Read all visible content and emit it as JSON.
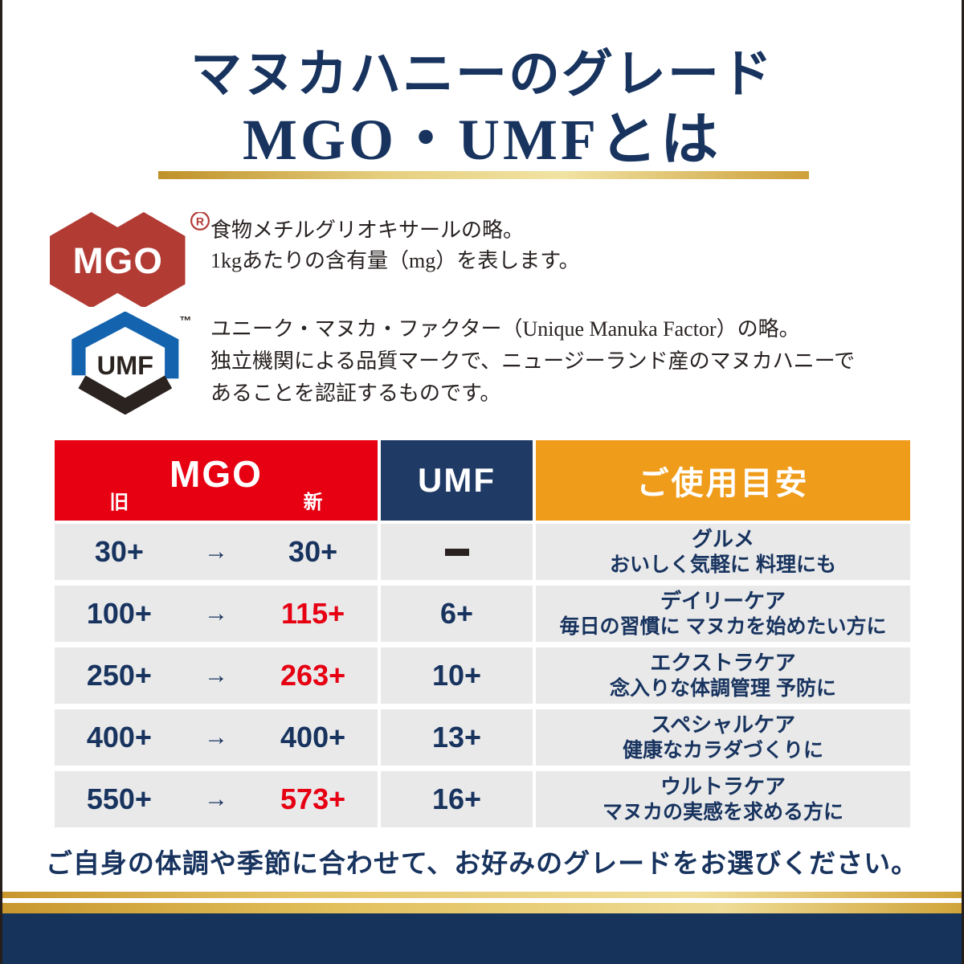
{
  "page": {
    "title_line1": "マヌカハニーのグレード",
    "title_line2": "MGO・UMFとは",
    "closing": "ご自身の体調や季節に合わせて、お好みのグレードをお選びください。"
  },
  "legend": {
    "mgo": {
      "logo_text": "MGO",
      "registered_mark": "®",
      "desc_lines": [
        "食物メチルグリオキサールの略。",
        "1kgあたりの含有量（mg）を表します。"
      ]
    },
    "umf": {
      "logo_text": "UMF",
      "trademark": "™",
      "desc_lines": [
        "ユニーク・マヌカ・ファクター（Unique Manuka Factor）の略。",
        "独立機関による品質マークで、ニュージーランド産のマヌカハニーで",
        "あることを認証するものです。"
      ]
    }
  },
  "table": {
    "headers": {
      "mgo": "MGO",
      "mgo_old": "旧",
      "mgo_new": "新",
      "umf": "UMF",
      "usage": "ご使用目安"
    },
    "rows": [
      {
        "mgo_old": "30+",
        "arrow": "→",
        "mgo_new": "30+",
        "new_highlight": false,
        "umf": "−",
        "umf_dash": true,
        "usage_title": "グルメ",
        "usage_desc": "おいしく気軽に 料理にも"
      },
      {
        "mgo_old": "100+",
        "arrow": "→",
        "mgo_new": "115+",
        "new_highlight": true,
        "umf": "6+",
        "umf_dash": false,
        "usage_title": "デイリーケア",
        "usage_desc": "毎日の習慣に マヌカを始めたい方に"
      },
      {
        "mgo_old": "250+",
        "arrow": "→",
        "mgo_new": "263+",
        "new_highlight": true,
        "umf": "10+",
        "umf_dash": false,
        "usage_title": "エクストラケア",
        "usage_desc": "念入りな体調管理 予防に"
      },
      {
        "mgo_old": "400+",
        "arrow": "→",
        "mgo_new": "400+",
        "new_highlight": false,
        "umf": "13+",
        "umf_dash": false,
        "usage_title": "スペシャルケア",
        "usage_desc": "健康なカラダづくりに"
      },
      {
        "mgo_old": "550+",
        "arrow": "→",
        "mgo_new": "573+",
        "new_highlight": true,
        "umf": "16+",
        "umf_dash": false,
        "usage_title": "ウルトラケア",
        "usage_desc": "マヌカの実感を求める方に"
      }
    ]
  },
  "colors": {
    "title_navy": "#17335e",
    "header_red": "#e60012",
    "header_navy": "#203a66",
    "header_orange": "#f09c1b",
    "row_gray": "#e9e9ea",
    "highlight_red": "#e60012",
    "mgo_logo_red": "#b23b34",
    "umf_logo_blue": "#1463ae",
    "umf_logo_black": "#2b2320",
    "gold": "#cda03a",
    "footer_navy": "#16335b"
  }
}
